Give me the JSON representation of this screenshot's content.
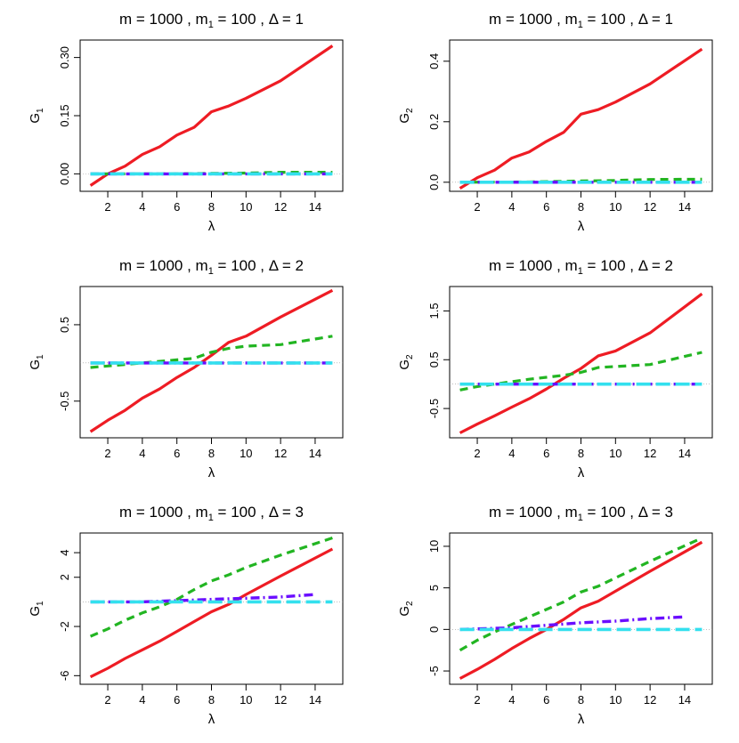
{
  "chart_data": [
    {
      "type": "line",
      "title_parts": {
        "m": "m = 1000 ,",
        "m1": "m",
        "m1_sub": "1",
        "m1_val": " = 100 ,",
        "delta": "Δ = 1"
      },
      "xlabel": "λ",
      "ylabel": "G",
      "ylabel_sub": "1",
      "xlim": [
        0.4,
        15.6
      ],
      "ylim": [
        -0.045,
        0.345
      ],
      "xticks": [
        2,
        4,
        6,
        8,
        10,
        12,
        14
      ],
      "yticks": [
        0.0,
        0.15,
        0.3
      ],
      "ytick_labels": [
        "0.00",
        "0.15",
        "0.30"
      ],
      "series": [
        {
          "name": "red",
          "x": [
            1,
            2,
            3,
            4,
            5,
            6,
            7,
            8,
            9,
            10,
            12,
            15
          ],
          "values": [
            -0.03,
            0.0,
            0.02,
            0.05,
            0.07,
            0.1,
            0.12,
            0.16,
            0.175,
            0.195,
            0.24,
            0.33
          ]
        },
        {
          "name": "green",
          "x": [
            1,
            5,
            8,
            10,
            12,
            15
          ],
          "values": [
            0.0,
            0.0,
            0.001,
            0.002,
            0.004,
            0.004
          ]
        },
        {
          "name": "purple",
          "x": [
            1,
            15
          ],
          "values": [
            0.0,
            0.0
          ]
        },
        {
          "name": "cyan",
          "x": [
            1,
            15
          ],
          "values": [
            0.0,
            0.0
          ]
        }
      ]
    },
    {
      "type": "line",
      "title_parts": {
        "m": "m = 1000 ,",
        "m1": "m",
        "m1_sub": "1",
        "m1_val": " = 100 ,",
        "delta": "Δ = 1"
      },
      "xlabel": "λ",
      "ylabel": "G",
      "ylabel_sub": "2",
      "xlim": [
        0.4,
        15.6
      ],
      "ylim": [
        -0.03,
        0.47
      ],
      "xticks": [
        2,
        4,
        6,
        8,
        10,
        12,
        14
      ],
      "yticks": [
        0.0,
        0.2,
        0.4
      ],
      "ytick_labels": [
        "0.0",
        "0.2",
        "0.4"
      ],
      "series": [
        {
          "name": "red",
          "x": [
            1,
            2,
            3,
            4,
            5,
            6,
            7,
            8,
            9,
            10,
            12,
            15
          ],
          "values": [
            -0.02,
            0.015,
            0.04,
            0.08,
            0.1,
            0.135,
            0.165,
            0.225,
            0.24,
            0.265,
            0.325,
            0.44
          ]
        },
        {
          "name": "green",
          "x": [
            1,
            5,
            8,
            10,
            12,
            15
          ],
          "values": [
            0.0,
            0.001,
            0.004,
            0.006,
            0.009,
            0.01
          ]
        },
        {
          "name": "purple",
          "x": [
            1,
            15
          ],
          "values": [
            0.0,
            0.0
          ]
        },
        {
          "name": "cyan",
          "x": [
            1,
            15
          ],
          "values": [
            0.0,
            0.0
          ]
        }
      ]
    },
    {
      "type": "line",
      "title_parts": {
        "m": "m = 1000 ,",
        "m1": "m",
        "m1_sub": "1",
        "m1_val": " = 100 ,",
        "delta": "Δ = 2"
      },
      "xlabel": "λ",
      "ylabel": "G",
      "ylabel_sub": "1",
      "xlim": [
        0.4,
        15.6
      ],
      "ylim": [
        -0.98,
        1.0
      ],
      "xticks": [
        2,
        4,
        6,
        8,
        10,
        12,
        14
      ],
      "yticks": [
        -0.5,
        0.5
      ],
      "ytick_labels": [
        "-0.5",
        "0.5"
      ],
      "series": [
        {
          "name": "red",
          "x": [
            1,
            2,
            3,
            4,
            5,
            6,
            7,
            8,
            9,
            10,
            12,
            15
          ],
          "values": [
            -0.9,
            -0.75,
            -0.62,
            -0.46,
            -0.34,
            -0.19,
            -0.06,
            0.1,
            0.27,
            0.35,
            0.6,
            0.95
          ]
        },
        {
          "name": "green",
          "x": [
            1,
            2,
            3,
            4,
            5,
            6,
            7,
            8,
            9,
            10,
            12,
            15
          ],
          "values": [
            -0.06,
            -0.04,
            -0.02,
            0.0,
            0.02,
            0.04,
            0.06,
            0.14,
            0.19,
            0.22,
            0.24,
            0.35
          ]
        },
        {
          "name": "purple",
          "x": [
            1,
            15
          ],
          "values": [
            0.0,
            0.0
          ]
        },
        {
          "name": "cyan",
          "x": [
            1,
            15
          ],
          "values": [
            0.0,
            0.0
          ]
        }
      ]
    },
    {
      "type": "line",
      "title_parts": {
        "m": "m = 1000 ,",
        "m1": "m",
        "m1_sub": "1",
        "m1_val": " = 100 ,",
        "delta": "Δ = 2"
      },
      "xlabel": "λ",
      "ylabel": "G",
      "ylabel_sub": "2",
      "xlim": [
        0.4,
        15.6
      ],
      "ylim": [
        -1.1,
        2.0
      ],
      "xticks": [
        2,
        4,
        6,
        8,
        10,
        12,
        14
      ],
      "yticks": [
        -0.5,
        0.5,
        1.5
      ],
      "ytick_labels": [
        "-0.5",
        "0.5",
        "1.5"
      ],
      "series": [
        {
          "name": "red",
          "x": [
            1,
            2,
            3,
            4,
            5,
            6,
            7,
            8,
            9,
            10,
            12,
            15
          ],
          "values": [
            -1.0,
            -0.82,
            -0.65,
            -0.47,
            -0.3,
            -0.1,
            0.12,
            0.32,
            0.58,
            0.68,
            1.05,
            1.85
          ]
        },
        {
          "name": "green",
          "x": [
            1,
            2,
            3,
            4,
            5,
            6,
            7,
            8,
            9,
            10,
            12,
            15
          ],
          "values": [
            -0.12,
            -0.05,
            0.0,
            0.05,
            0.1,
            0.14,
            0.18,
            0.24,
            0.34,
            0.36,
            0.4,
            0.65
          ]
        },
        {
          "name": "purple",
          "x": [
            1,
            15
          ],
          "values": [
            0.0,
            0.0
          ]
        },
        {
          "name": "cyan",
          "x": [
            1,
            15
          ],
          "values": [
            0.0,
            0.0
          ]
        }
      ]
    },
    {
      "type": "line",
      "title_parts": {
        "m": "m = 1000 ,",
        "m1": "m",
        "m1_sub": "1",
        "m1_val": " = 100 ,",
        "delta": "Δ = 3"
      },
      "xlabel": "λ",
      "ylabel": "G",
      "ylabel_sub": "1",
      "xlim": [
        0.4,
        15.6
      ],
      "ylim": [
        -6.7,
        5.6
      ],
      "xticks": [
        2,
        4,
        6,
        8,
        10,
        12,
        14
      ],
      "yticks": [
        -6,
        -2,
        2,
        4
      ],
      "ytick_labels": [
        "-6",
        "-2",
        "2",
        "4"
      ],
      "series": [
        {
          "name": "red",
          "x": [
            1,
            2,
            3,
            4,
            5,
            6,
            7,
            8,
            9,
            10,
            12,
            15
          ],
          "values": [
            -6.1,
            -5.4,
            -4.6,
            -3.9,
            -3.2,
            -2.4,
            -1.6,
            -0.8,
            -0.2,
            0.6,
            2.1,
            4.3
          ]
        },
        {
          "name": "green",
          "x": [
            1,
            2,
            3,
            4,
            5,
            6,
            7,
            8,
            9,
            10,
            12,
            15
          ],
          "values": [
            -2.8,
            -2.2,
            -1.5,
            -0.9,
            -0.4,
            0.2,
            1.0,
            1.7,
            2.2,
            2.8,
            3.8,
            5.2
          ]
        },
        {
          "name": "purple",
          "x": [
            1,
            4,
            6,
            8,
            10,
            12,
            14
          ],
          "values": [
            0.0,
            0.0,
            0.1,
            0.2,
            0.3,
            0.4,
            0.6
          ]
        },
        {
          "name": "cyan",
          "x": [
            1,
            15
          ],
          "values": [
            0.0,
            0.0
          ]
        }
      ]
    },
    {
      "type": "line",
      "title_parts": {
        "m": "m = 1000 ,",
        "m1": "m",
        "m1_sub": "1",
        "m1_val": " = 100 ,",
        "delta": "Δ = 3"
      },
      "xlabel": "λ",
      "ylabel": "G",
      "ylabel_sub": "2",
      "xlim": [
        0.4,
        15.6
      ],
      "ylim": [
        -6.6,
        11.6
      ],
      "xticks": [
        2,
        4,
        6,
        8,
        10,
        12,
        14
      ],
      "yticks": [
        -5,
        0,
        5,
        10
      ],
      "ytick_labels": [
        "-5",
        "0",
        "5",
        "10"
      ],
      "series": [
        {
          "name": "red",
          "x": [
            1,
            2,
            3,
            4,
            5,
            6,
            7,
            8,
            9,
            10,
            12,
            15
          ],
          "values": [
            -5.9,
            -4.8,
            -3.6,
            -2.3,
            -1.1,
            0.0,
            1.2,
            2.6,
            3.4,
            4.6,
            7.0,
            10.5
          ]
        },
        {
          "name": "green",
          "x": [
            1,
            2,
            3,
            4,
            5,
            6,
            7,
            8,
            9,
            10,
            12,
            15
          ],
          "values": [
            -2.5,
            -1.3,
            -0.3,
            0.6,
            1.5,
            2.4,
            3.3,
            4.5,
            5.2,
            6.2,
            8.2,
            11.0
          ]
        },
        {
          "name": "purple",
          "x": [
            1,
            4,
            6,
            8,
            10,
            12,
            14
          ],
          "values": [
            0.0,
            0.2,
            0.5,
            0.8,
            1.0,
            1.3,
            1.5
          ]
        },
        {
          "name": "cyan",
          "x": [
            1,
            15
          ],
          "values": [
            0.0,
            0.0
          ]
        }
      ]
    }
  ],
  "series_colors": {
    "red": "#ee1c24",
    "green": "#22b522",
    "purple": "#6a0dff",
    "cyan": "#33e0ee"
  }
}
